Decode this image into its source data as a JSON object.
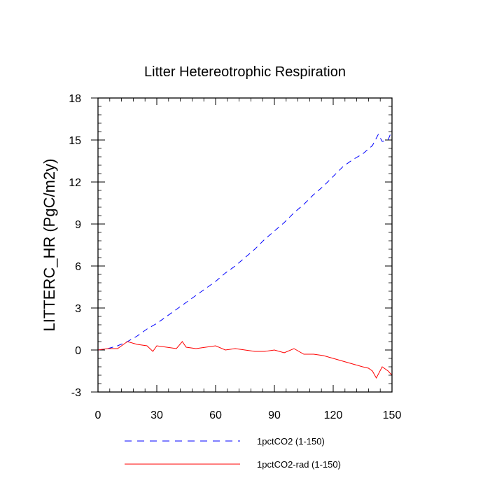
{
  "chart_data": {
    "type": "line",
    "title": "Litter Hetereotrophic Respiration",
    "xlabel": "",
    "ylabel": "LITTERC_HR  (PgC/m2y)",
    "xlim": [
      0,
      150
    ],
    "ylim": [
      -3,
      18
    ],
    "x_ticks": [
      0,
      30,
      60,
      90,
      120,
      150
    ],
    "y_ticks": [
      -3,
      0,
      3,
      6,
      9,
      12,
      15,
      18
    ],
    "x_tick_labels": [
      "0",
      "30",
      "60",
      "90",
      "120",
      "150"
    ],
    "y_tick_labels": [
      "-3",
      "0",
      "3",
      "6",
      "9",
      "12",
      "15",
      "18"
    ],
    "grid": false,
    "legend_position": "bottom",
    "series": [
      {
        "name": "1pctCO2 (1-150)",
        "color": "#0000ff",
        "dash": "dashed",
        "x": [
          0,
          5,
          10,
          15,
          20,
          25,
          30,
          35,
          40,
          45,
          50,
          55,
          60,
          65,
          70,
          75,
          80,
          85,
          90,
          95,
          100,
          105,
          110,
          115,
          120,
          125,
          130,
          135,
          140,
          143,
          145,
          148,
          150
        ],
        "values": [
          0.0,
          0.1,
          0.3,
          0.6,
          1.0,
          1.5,
          1.9,
          2.4,
          2.9,
          3.4,
          3.9,
          4.4,
          4.9,
          5.5,
          6.0,
          6.6,
          7.2,
          7.9,
          8.5,
          9.1,
          9.8,
          10.4,
          11.1,
          11.7,
          12.4,
          13.1,
          13.6,
          14.0,
          14.6,
          15.4,
          14.9,
          15.0,
          15.7
        ]
      },
      {
        "name": "1pctCO2-rad (1-150)",
        "color": "#ff0000",
        "dash": "solid",
        "x": [
          0,
          5,
          10,
          15,
          20,
          25,
          28,
          30,
          35,
          40,
          43,
          45,
          50,
          55,
          60,
          65,
          70,
          75,
          80,
          85,
          90,
          95,
          100,
          105,
          110,
          115,
          120,
          125,
          130,
          135,
          138,
          140,
          142,
          145,
          148,
          150
        ],
        "values": [
          0.0,
          0.1,
          0.1,
          0.6,
          0.4,
          0.3,
          -0.1,
          0.3,
          0.2,
          0.1,
          0.6,
          0.2,
          0.1,
          0.2,
          0.3,
          0.0,
          0.1,
          0.0,
          -0.1,
          -0.1,
          0.0,
          -0.2,
          0.1,
          -0.3,
          -0.3,
          -0.4,
          -0.6,
          -0.8,
          -1.0,
          -1.2,
          -1.3,
          -1.5,
          -2.0,
          -1.2,
          -1.5,
          -1.8
        ]
      }
    ]
  }
}
